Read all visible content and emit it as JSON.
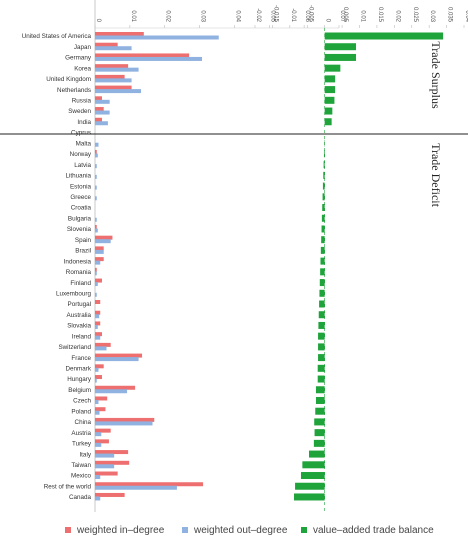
{
  "colors": {
    "in_degree": "#ee6f6f",
    "out_degree": "#8fb2e0",
    "balance": "#1fa33b",
    "divider": "#222222",
    "axis": "#bdbdbd"
  },
  "section_labels": {
    "surplus": "Trade Surplus",
    "deficit": "Trade Deficit"
  },
  "legend": {
    "in_degree": "weighted in–degree",
    "out_degree": "weighted out–degree",
    "balance": "value–added trade balance"
  },
  "chart_data": [
    {
      "type": "bar",
      "orientation": "horizontal",
      "axis_position": "top",
      "series": [
        {
          "name": "weighted in–degree",
          "color": "#ee6f6f",
          "values": [
            0.014,
            0.0065,
            0.027,
            0.0095,
            0.0085,
            0.0105,
            0.002,
            0.0025,
            0.002,
            0.0,
            0.0,
            0.0005,
            0.0,
            0.0,
            0.0,
            0.0,
            0.0,
            0.0,
            0.0005,
            0.005,
            0.0025,
            0.0025,
            0.0005,
            0.002,
            0.0,
            0.0015,
            0.0015,
            0.0015,
            0.002,
            0.0045,
            0.0135,
            0.0025,
            0.002,
            0.0115,
            0.0035,
            0.003,
            0.017,
            0.0045,
            0.004,
            0.0095,
            0.0098,
            0.0065,
            0.031,
            0.0085
          ]
        },
        {
          "name": "weighted out–degree",
          "color": "#8fb2e0",
          "values": [
            0.0355,
            0.0105,
            0.0307,
            0.0125,
            0.0105,
            0.0132,
            0.0042,
            0.0042,
            0.0037,
            0.0,
            0.001,
            0.0008,
            0.0005,
            0.0005,
            0.0005,
            0.0005,
            0.0,
            0.0005,
            0.0008,
            0.0045,
            0.0025,
            0.0015,
            0.0005,
            0.0008,
            0.0005,
            0.0,
            0.0012,
            0.0008,
            0.0015,
            0.0033,
            0.0125,
            0.001,
            0.0005,
            0.0092,
            0.001,
            0.0013,
            0.0165,
            0.0018,
            0.0018,
            0.0055,
            0.0055,
            0.0015,
            0.0235,
            0.0015
          ]
        }
      ],
      "xlim": [
        0,
        0.07
      ],
      "xticks": [
        "0",
        "0.01",
        "0.02",
        "0.03",
        "0.04",
        "0.05",
        "0.06",
        "0.07"
      ]
    },
    {
      "type": "bar",
      "orientation": "horizontal",
      "axis_position": "top",
      "series": [
        {
          "name": "value–added trade balance",
          "color": "#1fa33b",
          "values": [
            0.034,
            0.009,
            0.009,
            0.0045,
            0.003,
            0.003,
            0.0028,
            0.0022,
            0.002,
            0.0,
            -0.0001,
            -0.0002,
            -0.0003,
            -0.0004,
            -0.0005,
            -0.0006,
            -0.0007,
            -0.0008,
            -0.0009,
            -0.001,
            -0.0011,
            -0.0012,
            -0.0013,
            -0.0014,
            -0.0015,
            -0.0016,
            -0.0017,
            -0.0018,
            -0.0019,
            -0.0019,
            -0.0019,
            -0.002,
            -0.002,
            -0.0025,
            -0.0025,
            -0.0027,
            -0.003,
            -0.0029,
            -0.0031,
            -0.0045,
            -0.0064,
            -0.0068,
            -0.0085,
            -0.0088
          ]
        }
      ],
      "xlim": [
        -0.02,
        0.04
      ],
      "xticks": [
        "-0.02",
        "-0.015",
        "-0.01",
        "-0.005",
        "0",
        "0.005",
        "0.01",
        "0.015",
        "0.02",
        "0.025",
        "0.03",
        "0.035",
        "0.04"
      ]
    }
  ],
  "categories": [
    "United States of America",
    "Japan",
    "Germany",
    "Korea",
    "United Kingdom",
    "Netherlands",
    "Russia",
    "Sweden",
    "India",
    "Cyprus",
    "Malta",
    "Norway",
    "Latvia",
    "Lithuania",
    "Estonia",
    "Greece",
    "Croatia",
    "Bulgaria",
    "Slovenia",
    "Spain",
    "Brazil",
    "Indonesia",
    "Romania",
    "Finland",
    "Luxembourg",
    "Portugal",
    "Australia",
    "Slovakia",
    "Ireland",
    "Switzerland",
    "France",
    "Denmark",
    "Hungary",
    "Belgium",
    "Czech",
    "Poland",
    "China",
    "Austria",
    "Turkey",
    "Italy",
    "Taiwan",
    "Mexico",
    "Rest of the world",
    "Canada"
  ],
  "surplus_count": 9
}
